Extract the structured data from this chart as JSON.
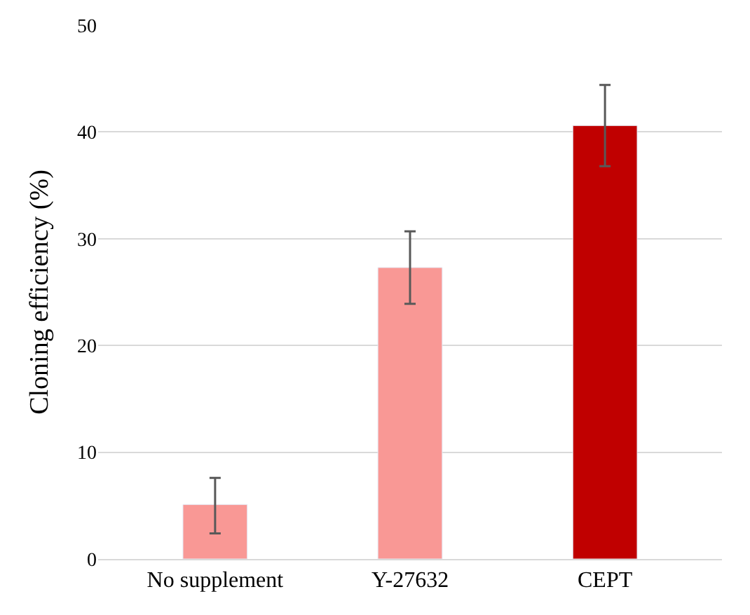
{
  "chart_data": {
    "type": "bar",
    "ylabel": "Cloning efficiency (%)",
    "categories": [
      "No supplement",
      "Y-27632",
      "CEPT"
    ],
    "values": [
      5.1,
      27.3,
      40.6
    ],
    "colors": [
      "#f99895",
      "#f99895",
      "#c00000"
    ],
    "errors": [
      [
        2.4,
        7.6
      ],
      [
        23.9,
        30.7
      ],
      [
        36.8,
        44.4
      ]
    ],
    "ylim": [
      0,
      50
    ],
    "yticks": [
      0,
      10,
      20,
      30,
      40,
      50
    ],
    "grid": "y"
  }
}
